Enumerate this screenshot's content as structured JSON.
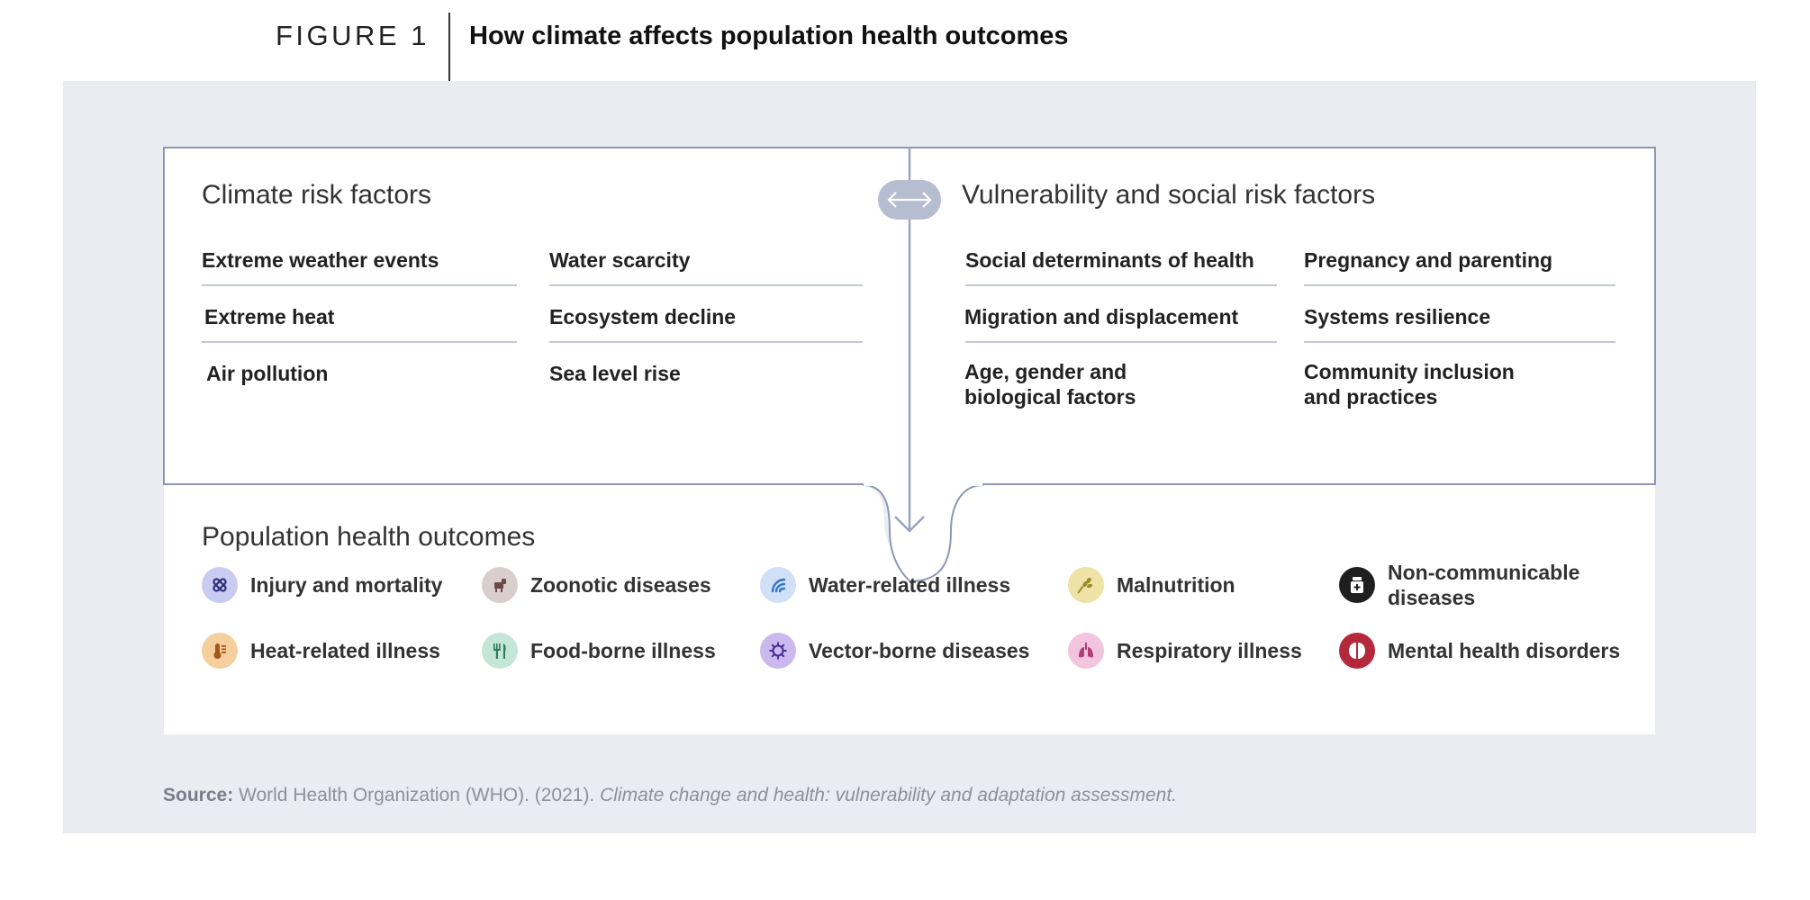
{
  "figure": {
    "label": "FIGURE 1",
    "title": "How climate affects population health outcomes"
  },
  "climate": {
    "heading": "Climate risk factors",
    "items": [
      "Extreme weather events",
      "Water scarcity",
      "Extreme heat",
      "Ecosystem decline",
      "Air pollution",
      "Sea level rise"
    ]
  },
  "vulnerability": {
    "heading": "Vulnerability and social risk factors",
    "items": [
      "Social determinants of health",
      "Pregnancy and parenting",
      "Migration and displacement",
      "Systems resilience",
      "Age, gender and\nbiological factors",
      "Community inclusion\nand practices"
    ]
  },
  "outcomes": {
    "heading": "Population health outcomes",
    "items": [
      {
        "label": "Injury and mortality",
        "icon": "bandage-icon",
        "color": "#c9cbf2",
        "fg": "#2b2f7a"
      },
      {
        "label": "Zoonotic diseases",
        "icon": "animal-icon",
        "color": "#d8cfcc",
        "fg": "#6a4a44"
      },
      {
        "label": "Water-related illness",
        "icon": "water-wave-icon",
        "color": "#cfe0f7",
        "fg": "#3473c9"
      },
      {
        "label": "Malnutrition",
        "icon": "wheat-icon",
        "color": "#efe2a6",
        "fg": "#9a8a2a"
      },
      {
        "label": "Non-communicable\ndiseases",
        "icon": "medicine-bottle-icon",
        "color": "#1f1f1f",
        "fg": "#ffffff"
      },
      {
        "label": "Heat-related illness",
        "icon": "thermometer-icon",
        "color": "#f6cf9f",
        "fg": "#a8551b"
      },
      {
        "label": "Food-borne illness",
        "icon": "fork-knife-icon",
        "color": "#c4e6d8",
        "fg": "#2d7a5c"
      },
      {
        "label": "Vector-borne diseases",
        "icon": "virus-icon",
        "color": "#cbb9ee",
        "fg": "#4a2e92"
      },
      {
        "label": "Respiratory illness",
        "icon": "lungs-icon",
        "color": "#f3c4de",
        "fg": "#b03c7a"
      },
      {
        "label": "Mental health disorders",
        "icon": "brain-icon",
        "color": "#b3293b",
        "fg": "#ffffff"
      }
    ]
  },
  "source": {
    "label": "Source:",
    "text": " World Health Organization (WHO). (2021). ",
    "title": "Climate change and health: vulnerability and adaptation assessment."
  },
  "colors": {
    "panel_bg": "#eaecf2",
    "box_border": "#8f97b4",
    "connector": "#9aa3bf",
    "rule": "#c4c8d3"
  }
}
